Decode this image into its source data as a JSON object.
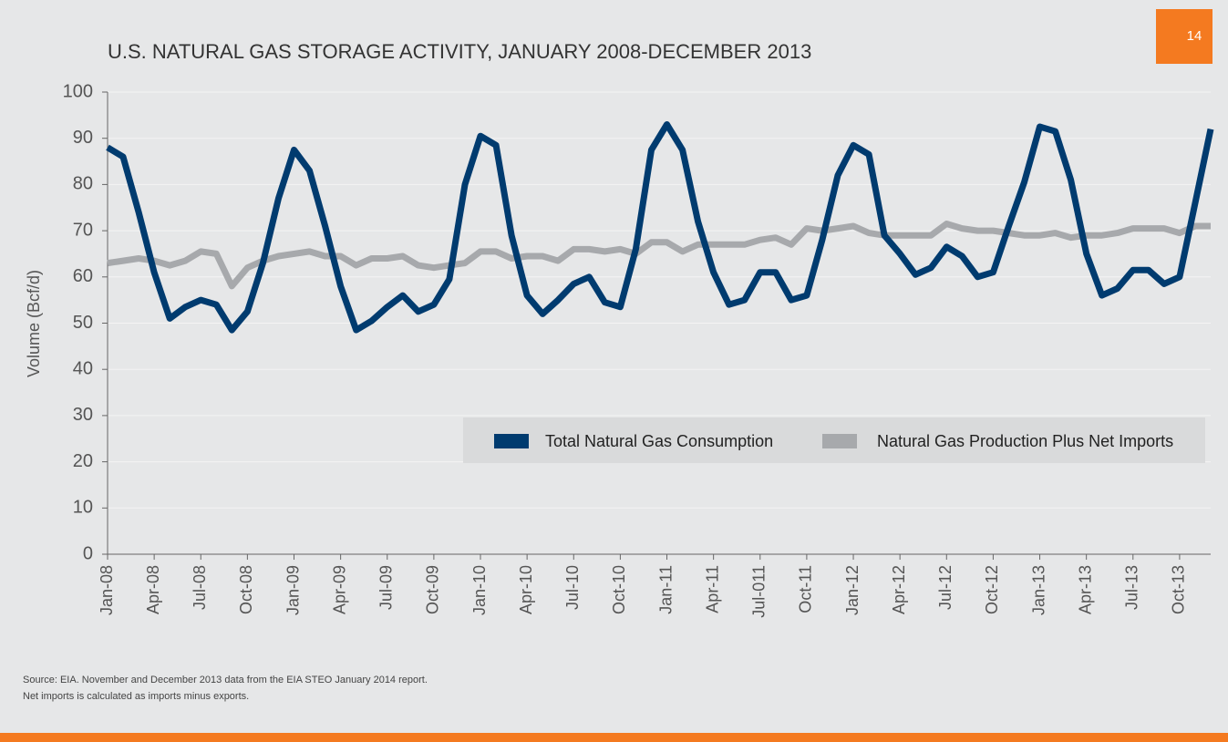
{
  "page_number": "14",
  "chart_data": {
    "type": "line",
    "title": "U.S. NATURAL GAS STORAGE ACTIVITY, JANUARY 2008-DECEMBER 2013",
    "y_label": "Volume (Bcf/d)",
    "categories": [
      "Jan-08",
      null,
      null,
      "Apr-08",
      null,
      null,
      "Jul-08",
      null,
      null,
      "Oct-08",
      null,
      null,
      "Jan-09",
      null,
      null,
      "Apr-09",
      null,
      null,
      "Jul-09",
      null,
      null,
      "Oct-09",
      null,
      null,
      "Jan-10",
      null,
      null,
      "Apr-10",
      null,
      null,
      "Jul-10",
      null,
      null,
      "Oct-10",
      null,
      null,
      "Jan-11",
      null,
      null,
      "Apr-11",
      null,
      null,
      "Jul-011",
      null,
      null,
      "Oct-11",
      null,
      null,
      "Jan-12",
      null,
      null,
      "Apr-12",
      null,
      null,
      "Jul-12",
      null,
      null,
      "Oct-12",
      null,
      null,
      "Jan-13",
      null,
      null,
      "Apr-13",
      null,
      null,
      "Jul-13",
      null,
      null,
      "Oct-13",
      null,
      null
    ],
    "series": [
      {
        "name": "Total Natural Gas Consumption",
        "color": "#003b6f",
        "values": [
          88,
          86,
          74,
          61,
          51,
          53.5,
          55,
          54,
          48.5,
          52.5,
          63,
          77,
          87.5,
          83,
          71,
          58,
          48.5,
          50.5,
          53.5,
          56,
          52.5,
          54,
          59.5,
          80,
          90.5,
          88.5,
          69,
          56,
          52,
          55,
          58.5,
          60,
          54.5,
          53.5,
          66,
          87.5,
          93,
          87.5,
          72,
          61,
          54,
          55,
          61,
          61,
          55,
          56,
          68,
          82,
          88.5,
          86.5,
          69,
          65,
          60.5,
          62,
          66.5,
          64.5,
          60,
          61,
          71,
          80.5,
          92.5,
          91.5,
          81,
          65,
          56,
          57.5,
          61.5,
          61.5,
          58.5,
          60,
          76,
          92
        ]
      },
      {
        "name": "Natural Gas Production Plus Net Imports",
        "color": "#a7a9ac",
        "values": [
          63,
          63.5,
          64,
          63.5,
          62.5,
          63.5,
          65.5,
          65,
          58,
          62,
          63.5,
          64.5,
          65,
          65.5,
          64.5,
          64.5,
          62.5,
          64,
          64,
          64.5,
          62.5,
          62,
          62.5,
          63,
          65.5,
          65.5,
          64,
          64.5,
          64.5,
          63.5,
          66,
          66,
          65.5,
          66,
          65,
          67.5,
          67.5,
          65.5,
          67,
          67,
          67,
          67,
          68,
          68.5,
          67,
          70.5,
          70,
          70.5,
          71,
          69.5,
          69,
          69,
          69,
          69,
          71.5,
          70.5,
          70,
          70,
          69.5,
          69,
          69,
          69.5,
          68.5,
          69,
          69,
          69.5,
          70.5,
          70.5,
          70.5,
          69.5,
          71,
          71
        ]
      }
    ],
    "ylim": [
      0,
      100
    ],
    "yticks": [
      0,
      10,
      20,
      30,
      40,
      50,
      60,
      70,
      80,
      90,
      100
    ],
    "grid": true,
    "notes": [
      "Source: EIA. November and December 2013 data from the EIA STEO January 2014 report.",
      "Net imports is calculated as imports minus exports."
    ]
  }
}
